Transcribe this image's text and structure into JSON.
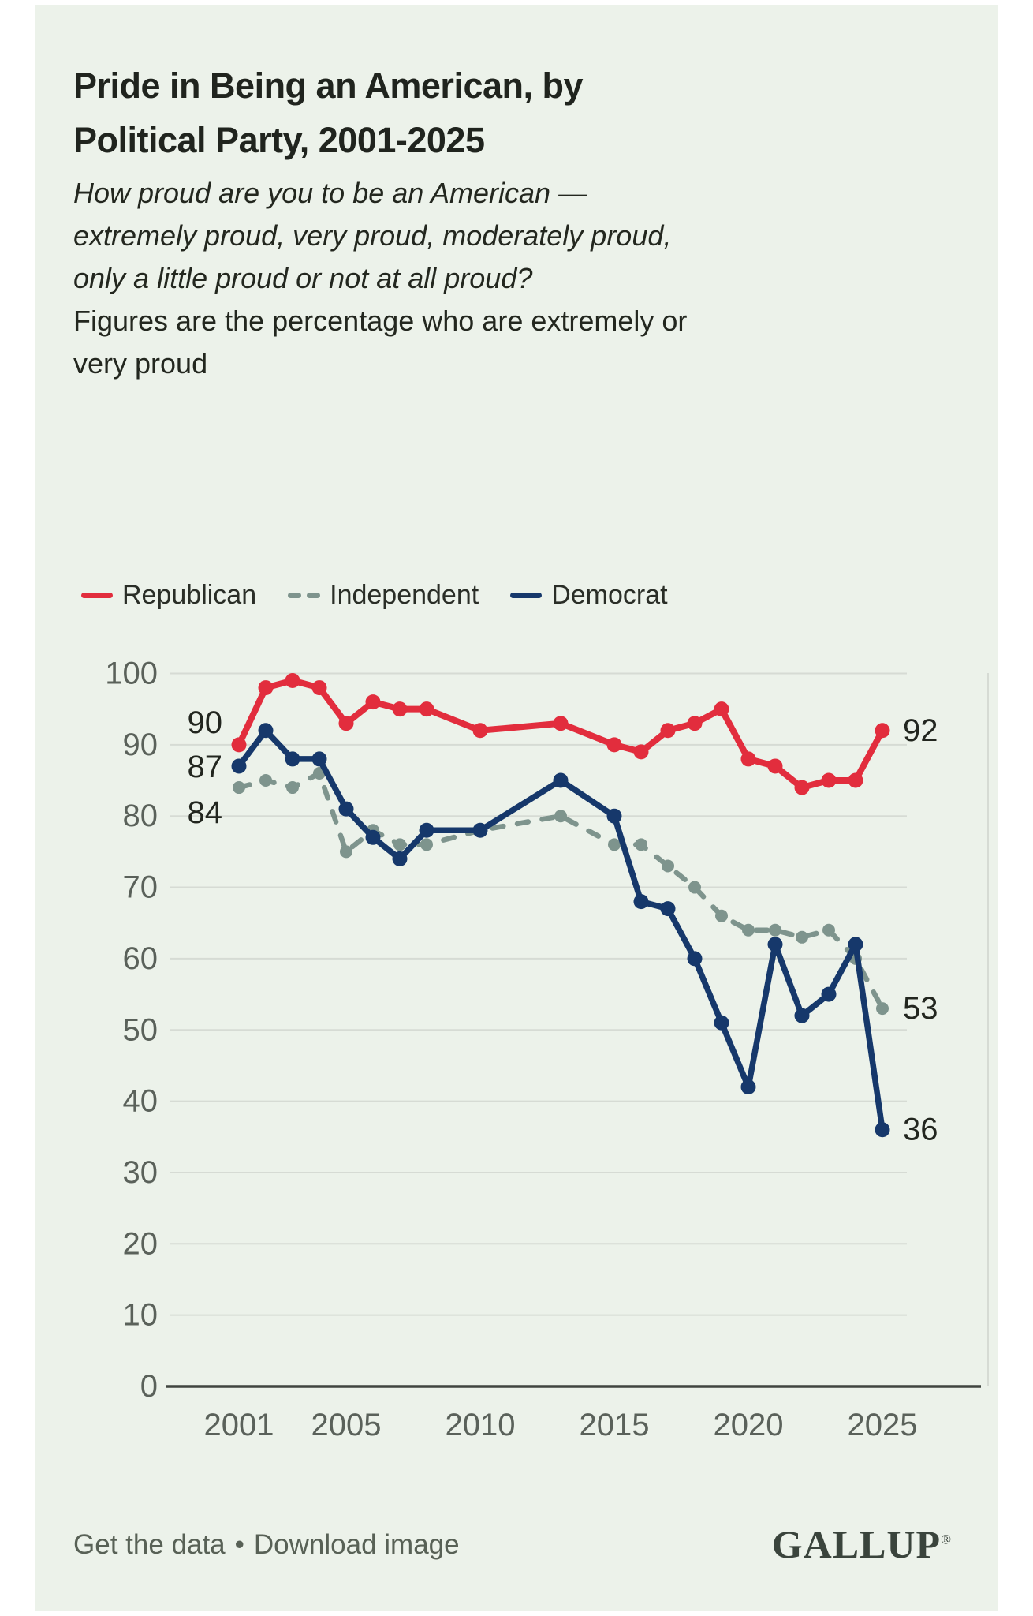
{
  "header": {
    "title_lines": [
      "Pride in Being an American, by",
      "Political Party, 2001-2025"
    ],
    "question_lines": [
      "How proud are you to be an American —",
      "extremely proud, very proud, moderately proud,",
      "only a little proud or not at all proud?"
    ],
    "note_lines": [
      "Figures are the percentage who are extremely or",
      "very proud"
    ]
  },
  "chart_data": {
    "type": "line",
    "title": "Pride in Being an American, by Political Party, 2001-2025",
    "subtitle_question": "How proud are you to be an American — extremely proud, very proud, moderately proud, only a little proud or not at all proud?",
    "subtitle_note": "Figures are the percentage who are extremely or very proud",
    "years": [
      2001,
      2002,
      2003,
      2004,
      2005,
      2006,
      2007,
      2008,
      2010,
      2013,
      2015,
      2016,
      2017,
      2018,
      2019,
      2020,
      2021,
      2022,
      2023,
      2024,
      2025
    ],
    "series": [
      {
        "name": "Republican",
        "color": "#e22d3d",
        "line_style": "solid",
        "values": [
          90,
          98,
          99,
          98,
          93,
          96,
          95,
          95,
          92,
          93,
          90,
          89,
          92,
          93,
          95,
          88,
          87,
          84,
          85,
          85,
          92
        ],
        "first_label": "90",
        "last_label": "92"
      },
      {
        "name": "Independent",
        "color": "#7e948d",
        "line_style": "dashed",
        "values": [
          84,
          85,
          84,
          86,
          75,
          78,
          76,
          76,
          78,
          80,
          76,
          76,
          73,
          70,
          66,
          64,
          64,
          63,
          64,
          60,
          53
        ],
        "first_label": "84",
        "last_label": "53"
      },
      {
        "name": "Democrat",
        "color": "#16386b",
        "line_style": "solid",
        "values": [
          87,
          92,
          88,
          88,
          81,
          77,
          74,
          78,
          78,
          85,
          80,
          68,
          67,
          60,
          51,
          42,
          62,
          52,
          55,
          62,
          36
        ],
        "first_label": "87",
        "last_label": "36"
      }
    ],
    "ylim": [
      0,
      100
    ],
    "yticks": [
      0,
      10,
      20,
      30,
      40,
      50,
      60,
      70,
      80,
      90,
      100
    ],
    "xticks": [
      2001,
      2005,
      2010,
      2015,
      2020,
      2025
    ],
    "grid": "horizontal",
    "legend_position": "top"
  },
  "colors": {
    "background": "#ecf2ea",
    "page_margin": "#ffffff",
    "gridline": "#d6dbd4",
    "axis_line": "#404540",
    "tick_text": "#5a615a",
    "value_label_text": "#22261f",
    "republican": "#e22d3d",
    "independent": "#7e948d",
    "democrat": "#16386b"
  },
  "footer": {
    "get_data": "Get the data",
    "separator": "•",
    "download_image": "Download image",
    "brand": "GALLUP",
    "registered": "®"
  }
}
